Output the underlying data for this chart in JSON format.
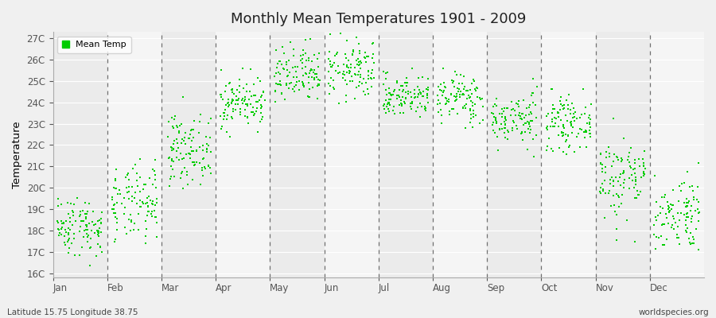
{
  "title": "Monthly Mean Temperatures 1901 - 2009",
  "ylabel": "Temperature",
  "xlabel_labels": [
    "Jan",
    "Feb",
    "Mar",
    "Apr",
    "May",
    "Jun",
    "Jul",
    "Aug",
    "Sep",
    "Oct",
    "Nov",
    "Dec"
  ],
  "ytick_labels": [
    "16C",
    "17C",
    "18C",
    "19C",
    "20C",
    "21C",
    "22C",
    "23C",
    "24C",
    "25C",
    "26C",
    "27C"
  ],
  "ytick_values": [
    16,
    17,
    18,
    19,
    20,
    21,
    22,
    23,
    24,
    25,
    26,
    27
  ],
  "ylim": [
    15.8,
    27.3
  ],
  "xlim": [
    0,
    12
  ],
  "marker_color": "#00CC00",
  "marker_size": 3,
  "legend_label": "Mean Temp",
  "bg_color": "#F0F0F0",
  "band_colors": [
    "#EBEBEB",
    "#F5F5F5"
  ],
  "footer_left": "Latitude 15.75 Longitude 38.75",
  "footer_right": "worldspecies.org",
  "monthly_means": [
    18.2,
    19.2,
    21.8,
    24.0,
    25.2,
    25.5,
    24.3,
    24.2,
    23.2,
    23.0,
    20.5,
    18.8
  ],
  "monthly_stds": [
    0.7,
    0.9,
    0.8,
    0.6,
    0.7,
    0.7,
    0.5,
    0.6,
    0.6,
    0.6,
    1.0,
    0.9
  ]
}
